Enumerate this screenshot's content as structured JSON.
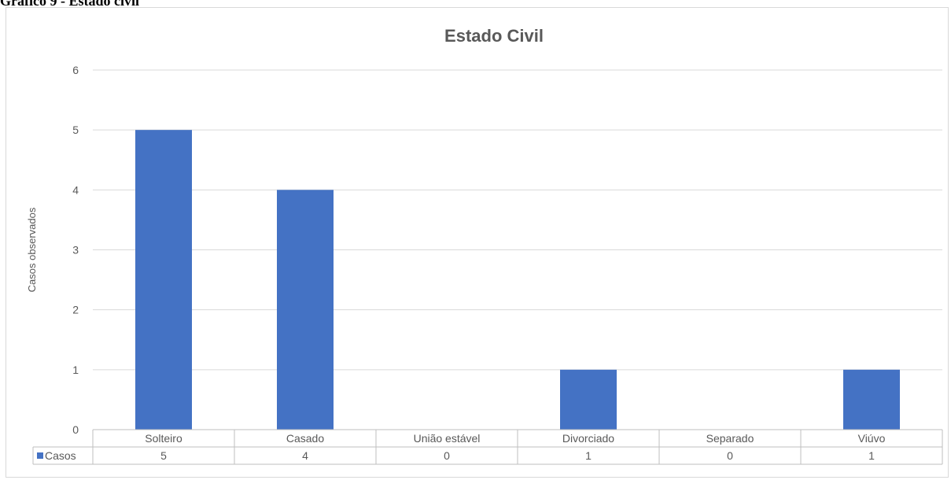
{
  "caption": "Gráfico 9 - Estado civil",
  "chart_data": {
    "type": "bar",
    "title": "Estado Civil",
    "xlabel": "",
    "ylabel": "Casos observados",
    "ylim": [
      0,
      6
    ],
    "yticks": [
      "0",
      "1",
      "2",
      "3",
      "4",
      "5",
      "6"
    ],
    "categories": [
      "Solteiro",
      "Casado",
      "União estável",
      "Divorciado",
      "Separado",
      "Viúvo"
    ],
    "series": [
      {
        "name": "Casos",
        "values": [
          5,
          4,
          0,
          1,
          0,
          1
        ],
        "value_labels": [
          "5",
          "4",
          "0",
          "1",
          "0",
          "1"
        ]
      }
    ],
    "grid": true,
    "legend": "data-table",
    "colors": {
      "bar": "#4472C4",
      "grid": "#D9D9D9",
      "text": "#595959"
    }
  }
}
